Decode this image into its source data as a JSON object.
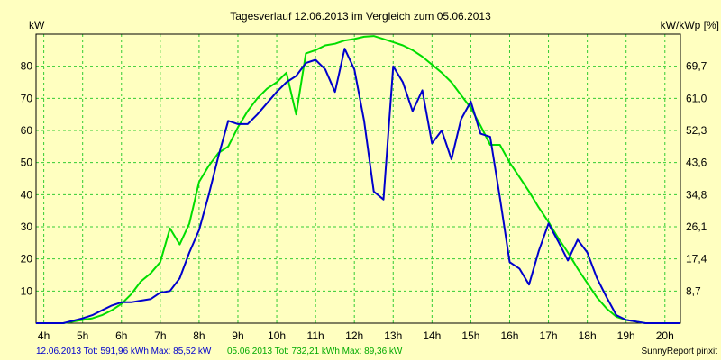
{
  "chart_data": {
    "type": "line",
    "title": "Tagesverlauf 12.06.2013 im Vergleich zum 05.06.2013",
    "ylabel": "kW",
    "y2label": "kW/kWp [%]",
    "x_tick_labels": [
      "4h",
      "5h",
      "6h",
      "7h",
      "8h",
      "9h",
      "10h",
      "11h",
      "12h",
      "13h",
      "14h",
      "15h",
      "16h",
      "17h",
      "18h",
      "19h",
      "20h"
    ],
    "x_range": [
      3.8,
      20.4
    ],
    "y_range": [
      0,
      90
    ],
    "y_ticks": [
      10,
      20,
      30,
      40,
      50,
      60,
      70,
      80
    ],
    "y2_tick_labels": [
      "8,7",
      "17,4",
      "26,1",
      "34,8",
      "43,6",
      "52,3",
      "61,0",
      "69,7"
    ],
    "grid": true,
    "series": [
      {
        "name": "12.06.2013",
        "color": "#0000cc",
        "x": [
          3.8,
          4.5,
          5.0,
          5.25,
          5.5,
          5.75,
          6.0,
          6.25,
          6.5,
          6.75,
          7.0,
          7.25,
          7.5,
          7.75,
          8.0,
          8.25,
          8.5,
          8.75,
          9.0,
          9.25,
          9.5,
          9.75,
          10.0,
          10.25,
          10.5,
          10.75,
          11.0,
          11.25,
          11.5,
          11.75,
          12.0,
          12.25,
          12.5,
          12.75,
          13.0,
          13.25,
          13.5,
          13.75,
          14.0,
          14.25,
          14.5,
          14.75,
          15.0,
          15.25,
          15.5,
          15.75,
          16.0,
          16.25,
          16.5,
          16.75,
          17.0,
          17.25,
          17.5,
          17.75,
          18.0,
          18.25,
          18.5,
          18.75,
          19.0,
          19.25,
          19.5,
          20.0,
          20.4
        ],
        "y": [
          0,
          0,
          1.5,
          2.5,
          4,
          5.5,
          6.5,
          6.5,
          7,
          7.5,
          9.5,
          10,
          14,
          22,
          29,
          40,
          52,
          63,
          62,
          62,
          65,
          68.5,
          72,
          75,
          77,
          81,
          82,
          79,
          72,
          85.5,
          79,
          63,
          41,
          38.5,
          80,
          75,
          66,
          72.5,
          56,
          60,
          51,
          63.5,
          69,
          59,
          58,
          39,
          19,
          17,
          12,
          22.5,
          31,
          25.5,
          19.5,
          26,
          22,
          14,
          8,
          2.5,
          1,
          0.5,
          0,
          0,
          0
        ]
      },
      {
        "name": "05.06.2013",
        "color": "#00dd00",
        "x": [
          3.8,
          4.5,
          5.0,
          5.25,
          5.5,
          5.75,
          6.0,
          6.25,
          6.5,
          6.75,
          7.0,
          7.25,
          7.5,
          7.75,
          8.0,
          8.25,
          8.5,
          8.75,
          9.0,
          9.25,
          9.5,
          9.75,
          10.0,
          10.25,
          10.5,
          10.75,
          11.0,
          11.25,
          11.5,
          11.75,
          12.0,
          12.25,
          12.5,
          12.75,
          13.0,
          13.25,
          13.5,
          13.75,
          14.0,
          14.25,
          14.5,
          14.75,
          15.0,
          15.25,
          15.5,
          15.75,
          16.0,
          16.25,
          16.5,
          16.75,
          17.0,
          17.25,
          17.5,
          17.75,
          18.0,
          18.25,
          18.5,
          18.75,
          19.0,
          19.25,
          19.5,
          20.0,
          20.4
        ],
        "y": [
          0,
          0,
          1,
          1.5,
          2.5,
          4,
          6,
          9,
          13,
          15.5,
          19,
          29.5,
          24.5,
          31,
          44,
          49,
          53,
          55,
          61,
          66,
          70,
          73,
          75,
          78,
          65,
          84,
          85,
          86.5,
          87,
          88,
          88.5,
          89.2,
          89.4,
          88.5,
          87.5,
          86.5,
          85,
          83,
          80.5,
          78,
          75,
          71,
          67,
          61.5,
          55.5,
          55.5,
          50,
          45.5,
          41,
          36,
          31.5,
          26.5,
          22,
          17,
          12.5,
          8,
          4.5,
          2,
          1,
          0.5,
          0,
          0,
          0
        ]
      }
    ],
    "legend": {
      "placement": "bottom-left",
      "entries": [
        {
          "text": "12.06.2013 Tot: 591,96 kWh Max: 85,52 kW",
          "color": "#0000cc"
        },
        {
          "text": "05.06.2013 Tot: 732,21 kWh Max: 89,36 kW",
          "color": "#00aa00"
        }
      ]
    },
    "credit": "SunnyReport pinxit"
  }
}
